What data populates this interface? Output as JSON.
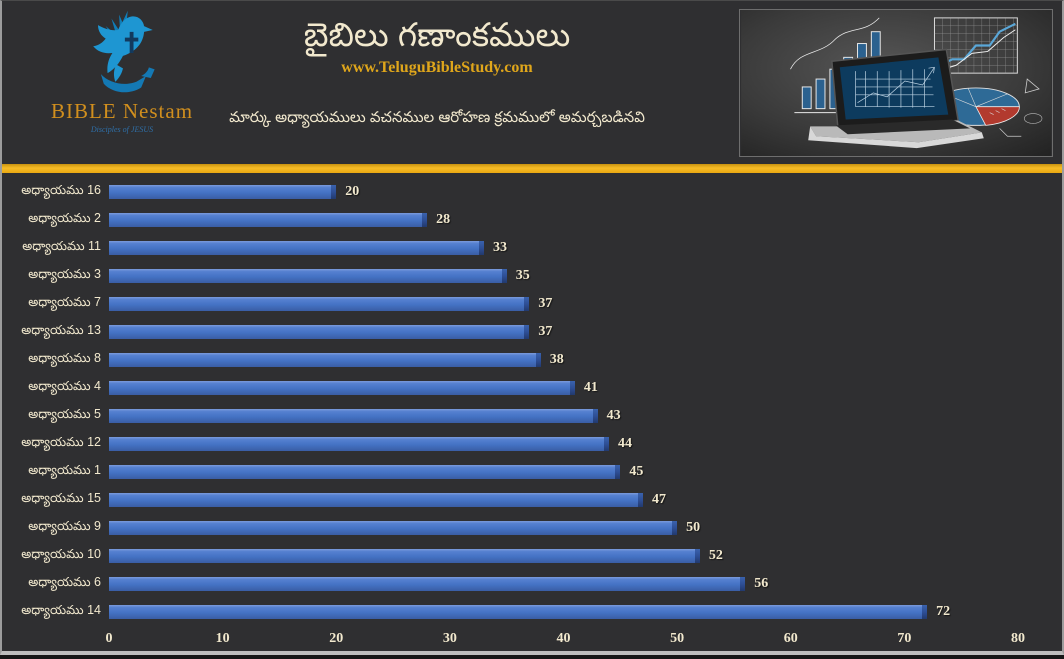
{
  "header": {
    "logo": {
      "brand": "BIBLE Nestam",
      "tagline": "Disciples of JESUS"
    },
    "title": "బైబిలు గణాంకములు",
    "website": "www.TeluguBibleStudy.com",
    "subtitle": "మార్కు అధ్యాయములు వచనముల ఆరోహణ క్రమములో అమర్చబడినవి"
  },
  "chart_data": {
    "type": "bar",
    "orientation": "horizontal",
    "title": "బైబిలు గణాంకములు",
    "categories": [
      "అధ్యాయము 16",
      "అధ్యాయము 2",
      "అధ్యాయము 11",
      "అధ్యాయము 3",
      "అధ్యాయము 7",
      "అధ్యాయము 13",
      "అధ్యాయము 8",
      "అధ్యాయము 4",
      "అధ్యాయము 5",
      "అధ్యాయము 12",
      "అధ్యాయము 1",
      "అధ్యాయము 15",
      "అధ్యాయము 9",
      "అధ్యాయము 10",
      "అధ్యాయము 6",
      "అధ్యాయము 14"
    ],
    "values": [
      20,
      28,
      33,
      35,
      37,
      37,
      38,
      41,
      43,
      44,
      45,
      47,
      50,
      52,
      56,
      72
    ],
    "xlabel": "",
    "ylabel": "",
    "xlim": [
      0,
      80
    ],
    "x_ticks": [
      0,
      10,
      20,
      30,
      40,
      50,
      60,
      70,
      80
    ],
    "grid": false,
    "value_labels": true,
    "legend": "none",
    "sort_order": "ascending by verses"
  },
  "colors": {
    "background": "#2f2f31",
    "bar": "#4472c4",
    "bar_shadow": "#2e4f96",
    "text_cream": "#f2e9ce",
    "gold_accent": "#f0b41e",
    "website_gold": "#dfa61b",
    "logo_blue": "#1e96d2"
  }
}
